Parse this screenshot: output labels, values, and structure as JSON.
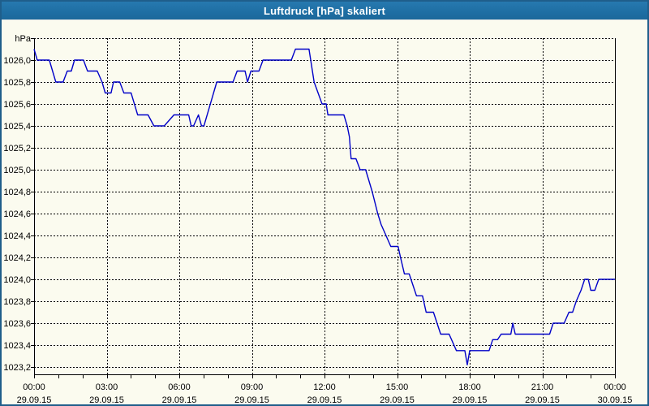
{
  "window": {
    "title": "Luftdruck [hPa] skaliert"
  },
  "colors": {
    "titlebar_bg": "#1F6FA4",
    "titlebar_text": "#FFFFFF",
    "window_border": "#1F5E8B",
    "content_bg": "#FBFBEF",
    "grid": "#000000",
    "axis": "#000000",
    "line": "#0000C8",
    "label_text": "#000000"
  },
  "chart_data": {
    "type": "line",
    "title": "Luftdruck [hPa] skaliert",
    "ylabel": "hPa",
    "xlabel": "",
    "grid": "dashed",
    "legend": "none",
    "x_axis": {
      "range_hours": [
        0,
        24
      ],
      "major_tick_hours": 3,
      "minor_tick_hours": 1,
      "ticks": [
        {
          "t": 0,
          "time": "00:00",
          "date": "29.09.15"
        },
        {
          "t": 3,
          "time": "03:00",
          "date": "29.09.15"
        },
        {
          "t": 6,
          "time": "06:00",
          "date": "29.09.15"
        },
        {
          "t": 9,
          "time": "09:00",
          "date": "29.09.15"
        },
        {
          "t": 12,
          "time": "12:00",
          "date": "29.09.15"
        },
        {
          "t": 15,
          "time": "15:00",
          "date": "29.09.15"
        },
        {
          "t": 18,
          "time": "18:00",
          "date": "29.09.15"
        },
        {
          "t": 21,
          "time": "21:00",
          "date": "29.09.15"
        },
        {
          "t": 24,
          "time": "00:00",
          "date": "30.09.15"
        }
      ]
    },
    "y_axis": {
      "unit": "hPa",
      "top_value": 1026.2,
      "bottom_grid_value": 1023.2,
      "grid_step": 0.2,
      "ticks": [
        {
          "value": 1026.0,
          "label": "1026,0"
        },
        {
          "value": 1025.8,
          "label": "1025,8"
        },
        {
          "value": 1025.6,
          "label": "1025,6"
        },
        {
          "value": 1025.4,
          "label": "1025,4"
        },
        {
          "value": 1025.2,
          "label": "1025,2"
        },
        {
          "value": 1025.0,
          "label": "1025,0"
        },
        {
          "value": 1024.8,
          "label": "1024,8"
        },
        {
          "value": 1024.6,
          "label": "1024,6"
        },
        {
          "value": 1024.4,
          "label": "1024,4"
        },
        {
          "value": 1024.2,
          "label": "1024,2"
        },
        {
          "value": 1024.0,
          "label": "1024,0"
        },
        {
          "value": 1023.8,
          "label": "1023,8"
        },
        {
          "value": 1023.6,
          "label": "1023,6"
        },
        {
          "value": 1023.4,
          "label": "1023,4"
        },
        {
          "value": 1023.2,
          "label": "1023,2"
        }
      ]
    },
    "series": [
      {
        "name": "Luftdruck",
        "color": "#0000C8",
        "points": [
          [
            0.0,
            1026.1
          ],
          [
            0.13,
            1026.0
          ],
          [
            0.63,
            1026.0
          ],
          [
            0.9,
            1025.8
          ],
          [
            1.2,
            1025.8
          ],
          [
            1.37,
            1025.9
          ],
          [
            1.54,
            1025.9
          ],
          [
            1.67,
            1026.0
          ],
          [
            2.04,
            1026.0
          ],
          [
            2.21,
            1025.9
          ],
          [
            2.61,
            1025.9
          ],
          [
            2.81,
            1025.8
          ],
          [
            2.94,
            1025.7
          ],
          [
            3.18,
            1025.7
          ],
          [
            3.28,
            1025.8
          ],
          [
            3.54,
            1025.8
          ],
          [
            3.71,
            1025.7
          ],
          [
            4.01,
            1025.7
          ],
          [
            4.28,
            1025.5
          ],
          [
            4.71,
            1025.5
          ],
          [
            4.95,
            1025.4
          ],
          [
            5.38,
            1025.4
          ],
          [
            5.78,
            1025.5
          ],
          [
            6.39,
            1025.5
          ],
          [
            6.49,
            1025.4
          ],
          [
            6.59,
            1025.4
          ],
          [
            6.79,
            1025.5
          ],
          [
            6.92,
            1025.4
          ],
          [
            7.02,
            1025.4
          ],
          [
            7.55,
            1025.8
          ],
          [
            8.22,
            1025.8
          ],
          [
            8.39,
            1025.9
          ],
          [
            8.72,
            1025.9
          ],
          [
            8.82,
            1025.8
          ],
          [
            8.96,
            1025.9
          ],
          [
            9.29,
            1025.9
          ],
          [
            9.46,
            1026.0
          ],
          [
            10.63,
            1026.0
          ],
          [
            10.8,
            1026.1
          ],
          [
            11.36,
            1026.1
          ],
          [
            11.57,
            1025.8
          ],
          [
            11.9,
            1025.6
          ],
          [
            12.07,
            1025.6
          ],
          [
            12.14,
            1025.5
          ],
          [
            12.8,
            1025.5
          ],
          [
            12.94,
            1025.4
          ],
          [
            13.03,
            1025.3
          ],
          [
            13.1,
            1025.1
          ],
          [
            13.3,
            1025.1
          ],
          [
            13.47,
            1025.0
          ],
          [
            13.7,
            1025.0
          ],
          [
            13.97,
            1024.8
          ],
          [
            14.2,
            1024.6
          ],
          [
            14.34,
            1024.5
          ],
          [
            14.54,
            1024.4
          ],
          [
            14.74,
            1024.3
          ],
          [
            15.04,
            1024.3
          ],
          [
            15.14,
            1024.2
          ],
          [
            15.3,
            1024.05
          ],
          [
            15.5,
            1024.05
          ],
          [
            15.8,
            1023.85
          ],
          [
            16.05,
            1023.85
          ],
          [
            16.2,
            1023.7
          ],
          [
            16.5,
            1023.7
          ],
          [
            16.8,
            1023.5
          ],
          [
            17.15,
            1023.5
          ],
          [
            17.45,
            1023.35
          ],
          [
            17.8,
            1023.35
          ],
          [
            17.9,
            1023.22
          ],
          [
            18.0,
            1023.35
          ],
          [
            18.8,
            1023.35
          ],
          [
            18.95,
            1023.45
          ],
          [
            19.15,
            1023.45
          ],
          [
            19.3,
            1023.5
          ],
          [
            19.7,
            1023.5
          ],
          [
            19.78,
            1023.6
          ],
          [
            19.88,
            1023.5
          ],
          [
            21.3,
            1023.5
          ],
          [
            21.45,
            1023.6
          ],
          [
            21.9,
            1023.6
          ],
          [
            22.1,
            1023.7
          ],
          [
            22.25,
            1023.7
          ],
          [
            22.4,
            1023.8
          ],
          [
            22.6,
            1023.9
          ],
          [
            22.75,
            1024.0
          ],
          [
            22.9,
            1024.0
          ],
          [
            23.0,
            1023.9
          ],
          [
            23.17,
            1023.9
          ],
          [
            23.33,
            1024.0
          ],
          [
            24.0,
            1024.0
          ]
        ]
      }
    ]
  }
}
